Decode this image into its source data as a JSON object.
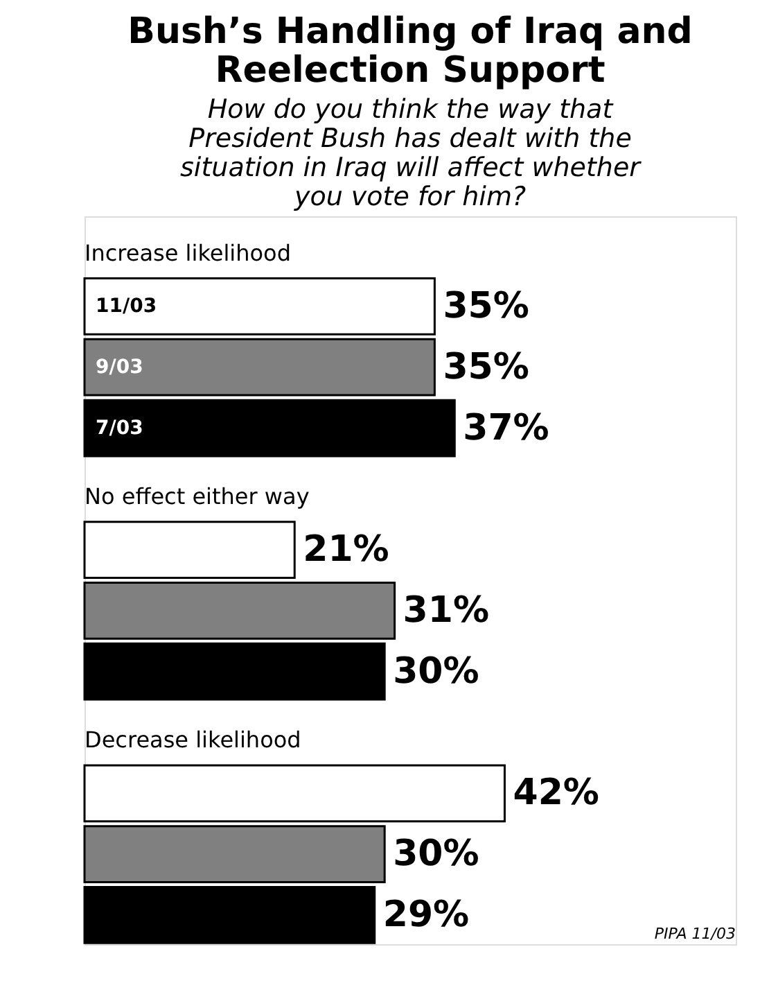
{
  "chart_data": {
    "type": "bar",
    "orientation": "horizontal",
    "title": "Bush’s Handling of Iraq and Reelection Support",
    "subtitle": "How do you think the way that President Bush has dealt with the situation in Iraq will affect whether you vote for him?",
    "categories": [
      "Increase likelihood",
      "No effect either way",
      "Decrease likelihood"
    ],
    "series": [
      {
        "name": "11/03",
        "color": "#ffffff",
        "values": [
          35,
          21,
          42
        ],
        "value_labels": [
          "35%",
          "21%",
          "42%"
        ]
      },
      {
        "name": "9/03",
        "color": "#808080",
        "values": [
          35,
          31,
          30
        ],
        "value_labels": [
          "35%",
          "31%",
          "30%"
        ]
      },
      {
        "name": "7/03",
        "color": "#000000",
        "values": [
          37,
          30,
          29
        ],
        "value_labels": [
          "37%",
          "30%",
          "29%"
        ]
      }
    ],
    "annotations": [
      "PIPA 11/03"
    ]
  }
}
